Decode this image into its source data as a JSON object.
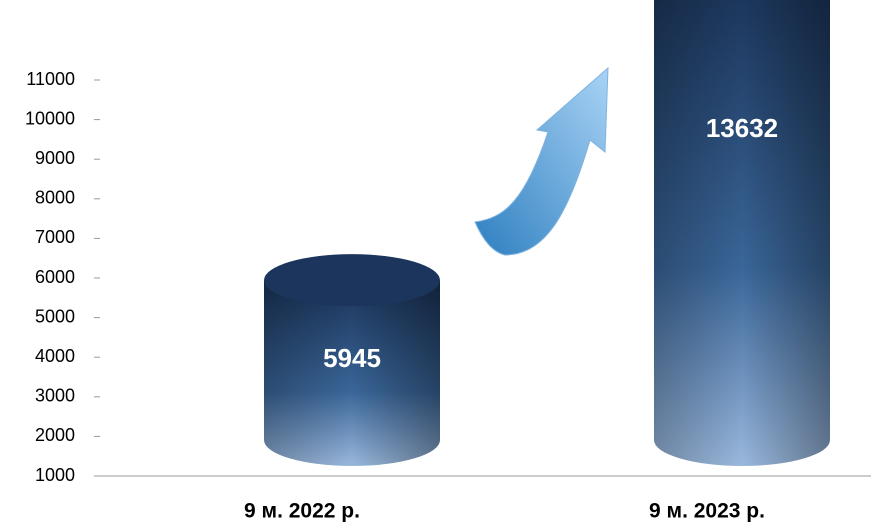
{
  "chart_data": {
    "type": "cylinder",
    "categories": [
      "9 м. 2022 р.",
      "9 м. 2023 р."
    ],
    "values": [
      5945,
      13632
    ],
    "color": "#1f3f6e",
    "ylim": [
      1000,
      11000
    ],
    "yticks": [
      1000,
      2000,
      3000,
      4000,
      5000,
      6000,
      7000,
      8000,
      9000,
      10000,
      11000
    ]
  }
}
